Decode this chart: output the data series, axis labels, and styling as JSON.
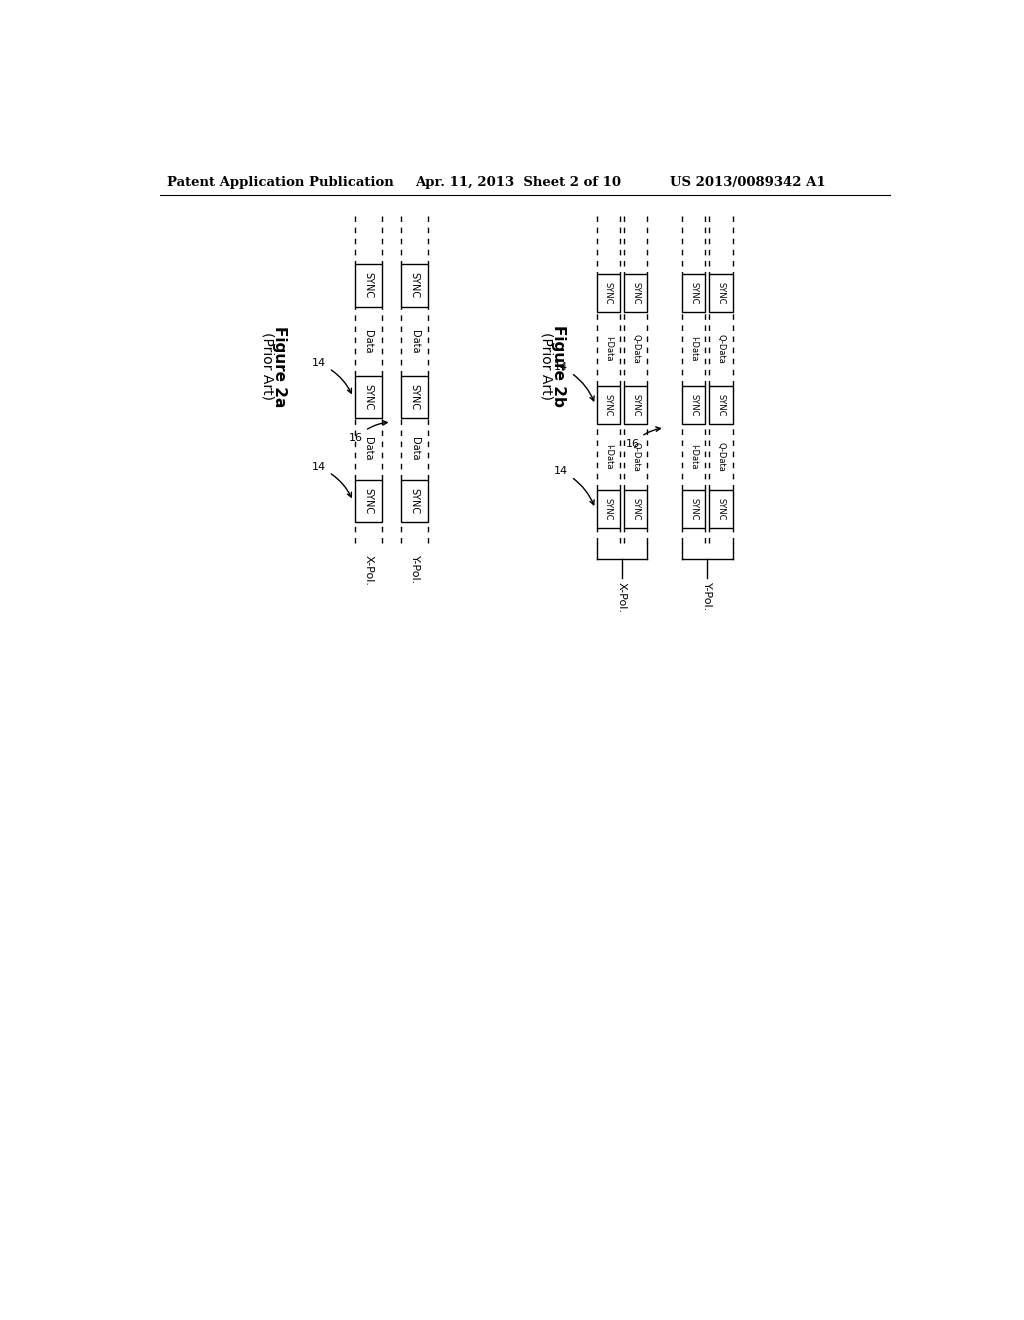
{
  "header_left": "Patent Application Publication",
  "header_mid": "Apr. 11, 2013  Sheet 2 of 10",
  "header_right": "US 2013/0089342 A1",
  "fig2a_title": "Figure 2a",
  "fig2a_subtitle": "(Prior Art)",
  "fig2b_title": "Figure 2b",
  "fig2b_subtitle": "(Prior Art)",
  "background": "#ffffff",
  "line_color": "#000000"
}
